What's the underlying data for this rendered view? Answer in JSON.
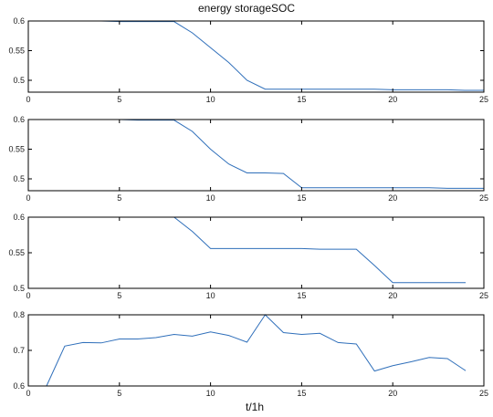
{
  "figure": {
    "title": "energy storageSOC",
    "xlabel": "t/1h"
  },
  "colors": {
    "line": "#2f6fba",
    "axis": "#000000",
    "background": "#ffffff"
  },
  "chart_data": [
    {
      "type": "line",
      "title": "energy storageSOC",
      "xlabel": "",
      "ylabel": "",
      "xlim": [
        0,
        25
      ],
      "ylim": [
        0.48,
        0.6
      ],
      "xticks": [
        0,
        5,
        10,
        15,
        20,
        25
      ],
      "yticks": [
        0.5,
        0.55,
        0.6
      ],
      "ytick_labels": [
        "0.5",
        "0.55",
        "0.6"
      ],
      "grid": false,
      "series": [
        {
          "x": [
            1,
            2,
            3,
            4,
            5,
            6,
            7,
            8,
            9,
            10,
            11,
            12,
            13,
            14,
            15,
            16,
            17,
            18,
            19,
            20,
            21,
            22,
            23,
            24,
            25
          ],
          "y": [
            0.6,
            0.6,
            0.6,
            0.6,
            0.599,
            0.599,
            0.599,
            0.599,
            0.58,
            0.555,
            0.53,
            0.5,
            0.485,
            0.485,
            0.485,
            0.485,
            0.485,
            0.485,
            0.485,
            0.484,
            0.484,
            0.484,
            0.484,
            0.483,
            0.483
          ]
        }
      ]
    },
    {
      "type": "line",
      "xlabel": "",
      "ylabel": "",
      "xlim": [
        0,
        25
      ],
      "ylim": [
        0.48,
        0.6
      ],
      "xticks": [
        0,
        5,
        10,
        15,
        20,
        25
      ],
      "yticks": [
        0.5,
        0.55,
        0.6
      ],
      "ytick_labels": [
        "0.5",
        "0.55",
        "0.6"
      ],
      "grid": false,
      "series": [
        {
          "x": [
            1,
            2,
            3,
            4,
            5,
            6,
            7,
            8,
            9,
            10,
            11,
            12,
            13,
            14,
            15,
            16,
            17,
            18,
            19,
            20,
            21,
            22,
            23,
            24,
            25
          ],
          "y": [
            0.6,
            0.6,
            0.6,
            0.6,
            0.6,
            0.599,
            0.599,
            0.599,
            0.58,
            0.55,
            0.525,
            0.51,
            0.51,
            0.509,
            0.485,
            0.485,
            0.485,
            0.485,
            0.485,
            0.485,
            0.485,
            0.485,
            0.484,
            0.484,
            0.484
          ]
        }
      ]
    },
    {
      "type": "line",
      "xlabel": "",
      "ylabel": "",
      "xlim": [
        0,
        25
      ],
      "ylim": [
        0.5,
        0.6
      ],
      "xticks": [
        0,
        5,
        10,
        15,
        20,
        25
      ],
      "yticks": [
        0.5,
        0.55,
        0.6
      ],
      "ytick_labels": [
        "0.5",
        "0.55",
        "0.6"
      ],
      "grid": false,
      "series": [
        {
          "x": [
            1,
            2,
            3,
            4,
            5,
            6,
            7,
            8,
            9,
            10,
            11,
            12,
            13,
            14,
            15,
            16,
            17,
            18,
            19,
            20,
            21,
            22,
            23,
            24
          ],
          "y": [
            0.6,
            0.6,
            0.6,
            0.6,
            0.6,
            0.6,
            0.6,
            0.6,
            0.58,
            0.556,
            0.556,
            0.556,
            0.556,
            0.556,
            0.556,
            0.555,
            0.555,
            0.555,
            0.532,
            0.508,
            0.508,
            0.508,
            0.508,
            0.508
          ]
        }
      ]
    },
    {
      "type": "line",
      "xlabel": "t/1h",
      "ylabel": "",
      "xlim": [
        0,
        25
      ],
      "ylim": [
        0.6,
        0.8
      ],
      "xticks": [
        0,
        5,
        10,
        15,
        20,
        25
      ],
      "yticks": [
        0.6,
        0.7,
        0.8
      ],
      "ytick_labels": [
        "0.6",
        "0.7",
        "0.8"
      ],
      "grid": false,
      "series": [
        {
          "x": [
            1,
            2,
            3,
            4,
            5,
            6,
            7,
            8,
            9,
            10,
            11,
            12,
            13,
            14,
            15,
            16,
            17,
            18,
            19,
            20,
            21,
            22,
            23,
            24
          ],
          "y": [
            0.6,
            0.712,
            0.722,
            0.721,
            0.732,
            0.732,
            0.736,
            0.745,
            0.74,
            0.752,
            0.742,
            0.723,
            0.8,
            0.75,
            0.745,
            0.748,
            0.722,
            0.718,
            0.642,
            0.657,
            0.668,
            0.68,
            0.677,
            0.643
          ]
        }
      ]
    }
  ]
}
